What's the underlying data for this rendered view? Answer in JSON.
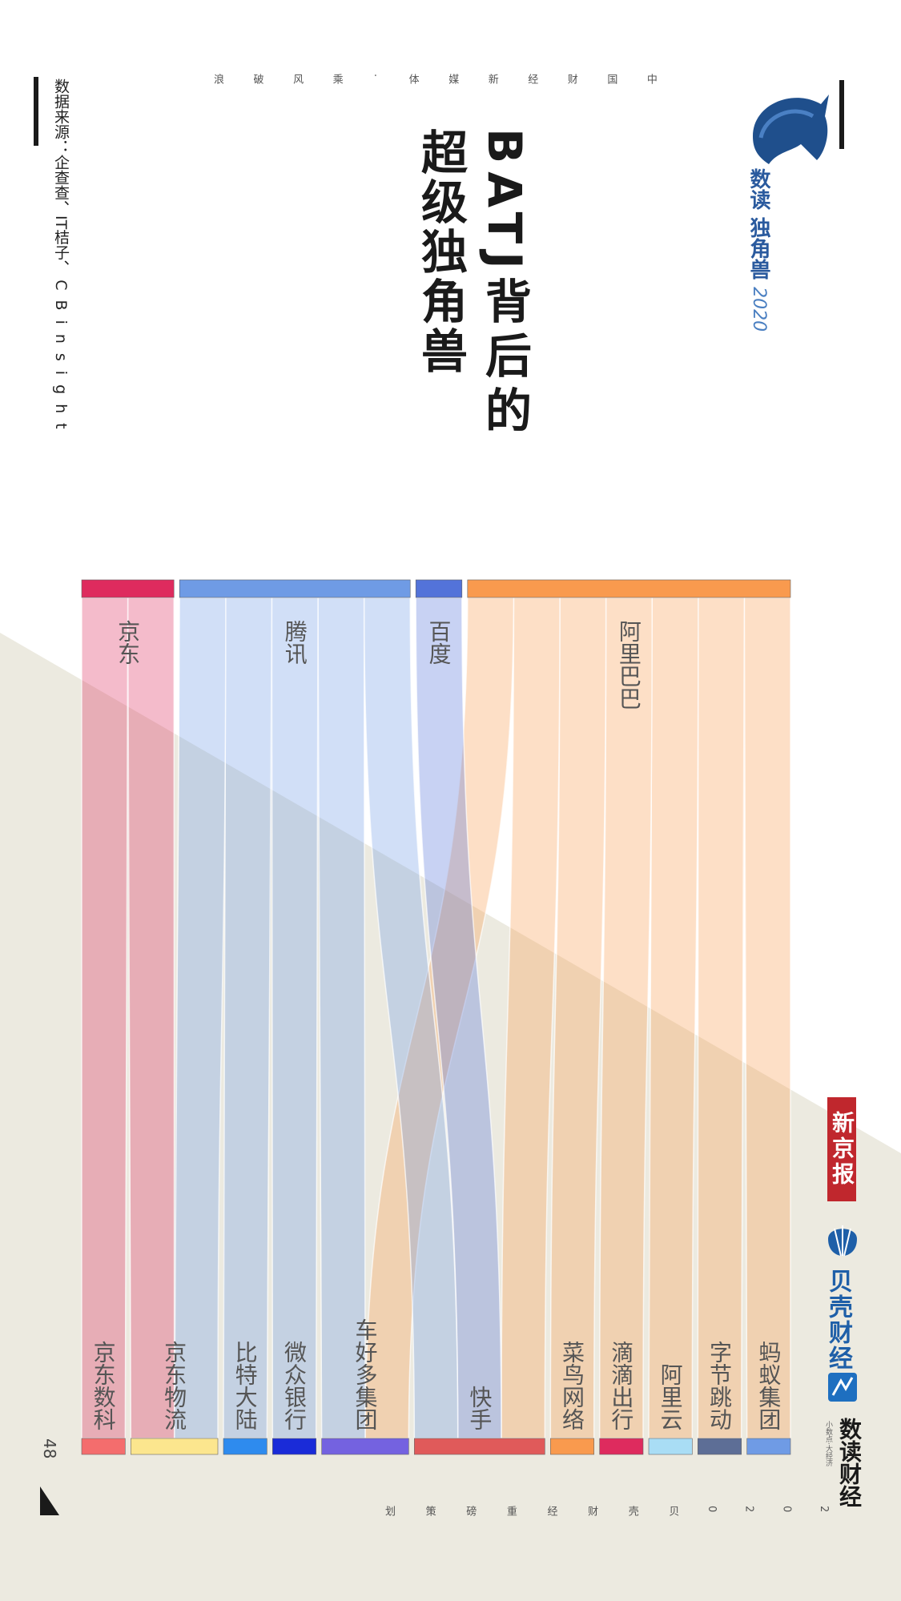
{
  "header": {
    "brand_line1": "数读",
    "brand_line2": "独角兽",
    "brand_year": "2020",
    "title_line1": "BATJ背后的",
    "title_line2": "超级独角兽",
    "subtitle_letters": [
      "中",
      "国",
      "财",
      "经",
      "新",
      "媒",
      "体",
      "·",
      "乘",
      "风",
      "破",
      "浪"
    ]
  },
  "source": {
    "line1": "数据来源：企查查、IT桔子、",
    "line2": "CBinsight"
  },
  "footer": {
    "page_number": "48",
    "letters": [
      "2",
      "0",
      "2",
      "0",
      "贝",
      "壳",
      "财",
      "经",
      "重",
      "磅",
      "策",
      "划"
    ],
    "logo_xinjingbao": "新京报",
    "logo_beike": "贝壳财经",
    "logo_shudu": "数读财经",
    "logo_shudu_sub": "小数点·大经济"
  },
  "colors": {
    "alibaba": "#F99A4E",
    "baidu": "#5373D9",
    "tencent": "#6F9BE5",
    "jd": "#DE2B5E",
    "background_lower": "#ECEAE0"
  },
  "chart_data": {
    "type": "sankey",
    "title": "BATJ背后的超级独角兽",
    "sources": [
      {
        "name": "阿里巴巴",
        "color": "#F99A4E"
      },
      {
        "name": "百度",
        "color": "#5373D9"
      },
      {
        "name": "腾讯",
        "color": "#6F9BE5"
      },
      {
        "name": "京东",
        "color": "#DE2B5E"
      }
    ],
    "targets": [
      {
        "name": "蚂蚁集团",
        "color": "#6F9BE5"
      },
      {
        "name": "字节跳动",
        "color": "#5D6E96"
      },
      {
        "name": "阿里云",
        "color": "#A9DDF5"
      },
      {
        "name": "滴滴出行",
        "color": "#DE2B5E"
      },
      {
        "name": "菜鸟网络",
        "color": "#F99A4E"
      },
      {
        "name": "快手",
        "color": "#E05A5A"
      },
      {
        "name": "车好多集团",
        "color": "#7462E0"
      },
      {
        "name": "微众银行",
        "color": "#1A2BD8"
      },
      {
        "name": "比特大陆",
        "color": "#2E8BEE"
      },
      {
        "name": "京东物流",
        "color": "#FCE68E"
      },
      {
        "name": "京东数科",
        "color": "#F46D6D"
      }
    ],
    "links": [
      {
        "source": "阿里巴巴",
        "target": "蚂蚁集团",
        "value": 1
      },
      {
        "source": "阿里巴巴",
        "target": "字节跳动",
        "value": 1
      },
      {
        "source": "阿里巴巴",
        "target": "阿里云",
        "value": 1
      },
      {
        "source": "阿里巴巴",
        "target": "滴滴出行",
        "value": 1
      },
      {
        "source": "阿里巴巴",
        "target": "菜鸟网络",
        "value": 1
      },
      {
        "source": "阿里巴巴",
        "target": "快手",
        "value": 1
      },
      {
        "source": "阿里巴巴",
        "target": "车好多集团",
        "value": 1
      },
      {
        "source": "百度",
        "target": "快手",
        "value": 1
      },
      {
        "source": "腾讯",
        "target": "快手",
        "value": 1
      },
      {
        "source": "腾讯",
        "target": "车好多集团",
        "value": 1
      },
      {
        "source": "腾讯",
        "target": "微众银行",
        "value": 1
      },
      {
        "source": "腾讯",
        "target": "比特大陆",
        "value": 1
      },
      {
        "source": "腾讯",
        "target": "京东物流",
        "value": 1
      },
      {
        "source": "京东",
        "target": "京东物流",
        "value": 1
      },
      {
        "source": "京东",
        "target": "京东数科",
        "value": 1
      }
    ]
  }
}
